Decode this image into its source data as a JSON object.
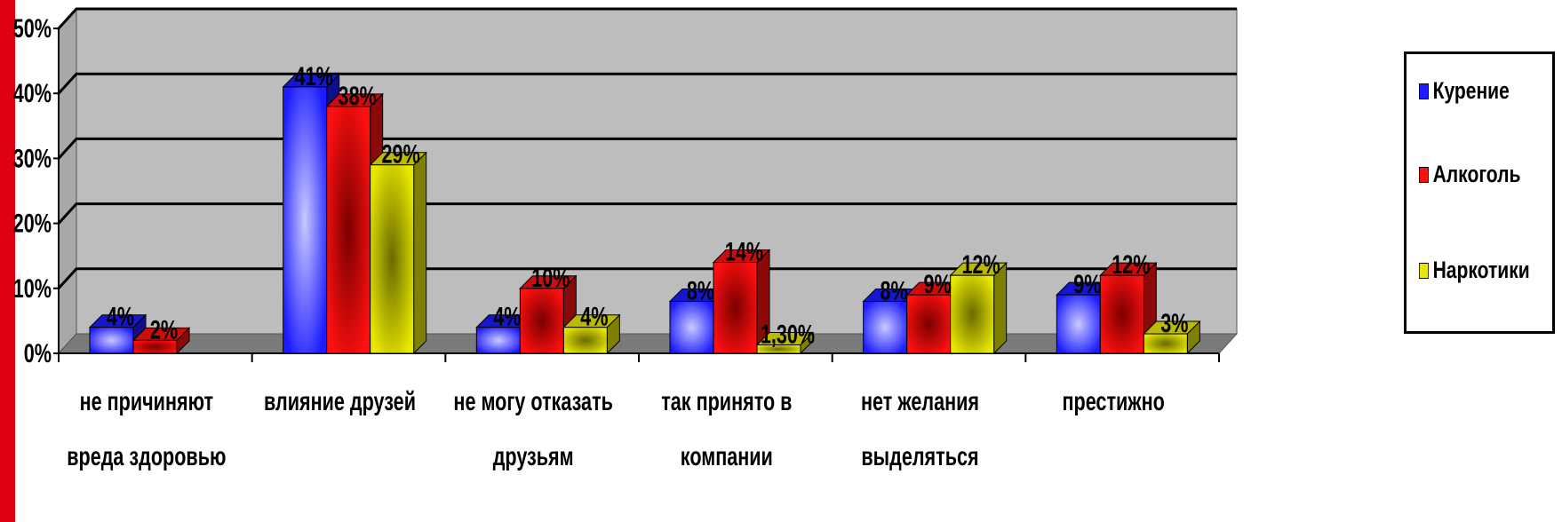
{
  "chart_data": {
    "type": "bar",
    "title": "",
    "xlabel": "",
    "ylabel": "",
    "ylim": [
      0,
      50
    ],
    "yticks": [
      "0%",
      "10%",
      "20%",
      "30%",
      "40%",
      "50%"
    ],
    "categories": [
      [
        "не причиняют",
        "вреда здоровью"
      ],
      [
        "влияние друзей"
      ],
      [
        "не могу отказать",
        "друзьям"
      ],
      [
        "так принято в",
        "компании"
      ],
      [
        "нет желания",
        "выделяться"
      ],
      [
        "престижно"
      ]
    ],
    "series": [
      {
        "name": "Курение",
        "color": "#1c1cff",
        "values": [
          4,
          41,
          4,
          8,
          8,
          9
        ],
        "labels": [
          "4%",
          "41%",
          "4%",
          "8%",
          "8%",
          "9%"
        ]
      },
      {
        "name": "Алкоголь",
        "color": "#ff1010",
        "values": [
          2,
          38,
          10,
          14,
          9,
          12
        ],
        "labels": [
          "2%",
          "38%",
          "10%",
          "14%",
          "9%",
          "12%"
        ]
      },
      {
        "name": "Наркотики",
        "color": "#e8e800",
        "values": [
          0,
          29,
          4,
          1.3,
          12,
          3
        ],
        "labels": [
          "",
          "29%",
          "4%",
          "1,30%",
          "12%",
          "3%"
        ]
      }
    ],
    "grid": true,
    "legend_position": "right"
  }
}
